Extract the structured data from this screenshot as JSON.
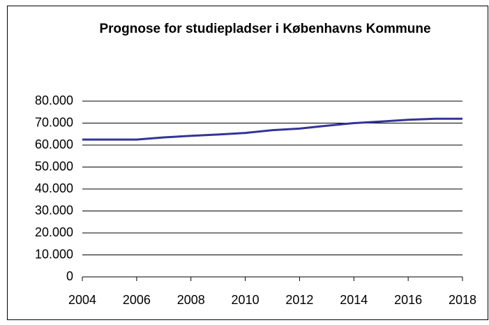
{
  "chart_data": {
    "type": "line",
    "title": "Prognose for studiepladser i Københavns Kommune",
    "x": [
      2004,
      2005,
      2006,
      2007,
      2008,
      2009,
      2010,
      2011,
      2012,
      2013,
      2014,
      2015,
      2016,
      2017,
      2018
    ],
    "series": [
      {
        "name": "Studiepladser",
        "color": "#333399",
        "values": [
          62500,
          62500,
          62500,
          63500,
          64200,
          64800,
          65500,
          66800,
          67500,
          68800,
          70000,
          70700,
          71500,
          72000,
          72000
        ]
      }
    ],
    "xlim": [
      2004,
      2018
    ],
    "xticks": [
      2004,
      2006,
      2008,
      2010,
      2012,
      2014,
      2016,
      2018
    ],
    "ylim": [
      0,
      80000
    ],
    "yticks": [
      0,
      {
        "value": 10000,
        "label": "10.000"
      },
      {
        "value": 20000,
        "label": "20.000"
      },
      {
        "value": 30000,
        "label": "30.000"
      },
      {
        "value": 40000,
        "label": "40.000"
      },
      {
        "value": 50000,
        "label": "50.000"
      },
      {
        "value": 60000,
        "label": "60.000"
      },
      {
        "value": 70000,
        "label": "70.000"
      },
      {
        "value": 80000,
        "label": "80.000"
      }
    ],
    "grid": true
  }
}
